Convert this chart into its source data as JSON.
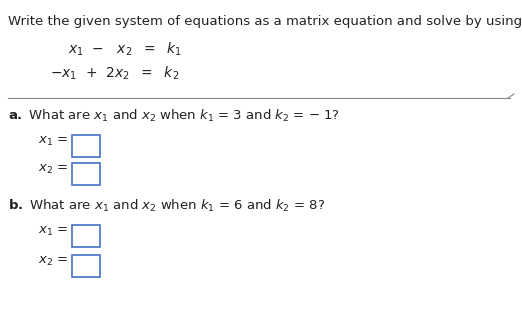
{
  "title": "Write the given system of equations as a matrix equation and solve by using inverses.",
  "bg_color": "#ffffff",
  "text_color": "#222222",
  "box_edge_color": "#4472c4",
  "title_fontsize": 9.5,
  "eq_fontsize": 10,
  "label_fontsize": 9.5,
  "var_fontsize": 9.5,
  "line_color": "#888888"
}
